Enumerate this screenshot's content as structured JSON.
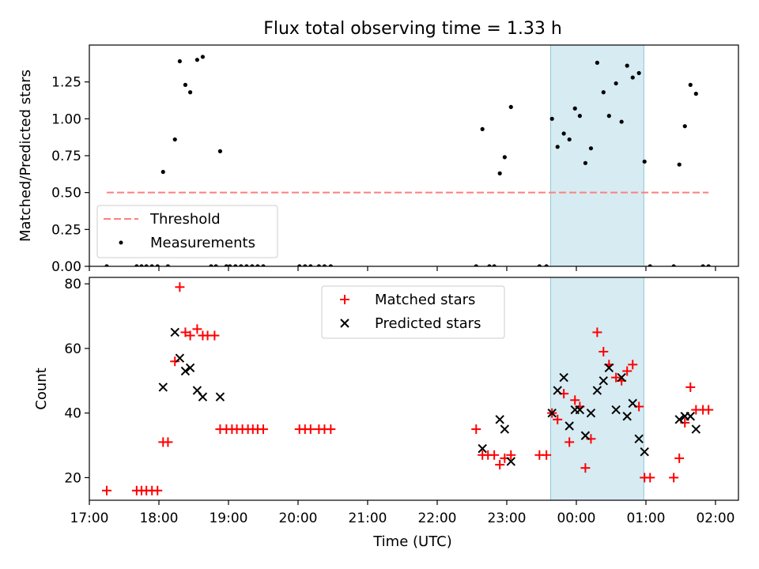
{
  "chart_data": [
    {
      "type": "scatter",
      "title": "Flux total observing time = 1.33 h",
      "xlabel": "",
      "ylabel": "Matched/Predicted stars",
      "xlim": [
        17.0,
        26.33
      ],
      "ylim": [
        0,
        1.5
      ],
      "yticks": [
        0,
        0.25,
        0.5,
        0.75,
        1.0,
        1.25
      ],
      "ytick_labels": [
        "0.00",
        "0.25",
        "0.50",
        "0.75",
        "1.00",
        "1.25"
      ],
      "highlight_span": [
        23.63,
        24.97
      ],
      "threshold": {
        "value": 0.5,
        "x_range": [
          17.25,
          25.9
        ],
        "color": "#ff7f7f",
        "label": "Threshold"
      },
      "legend": {
        "location": "lower-left",
        "entries": [
          "Threshold",
          "Measurements"
        ]
      },
      "series": [
        {
          "name": "Measurements",
          "color": "#000000",
          "x": [
            17.25,
            17.68,
            17.75,
            17.82,
            17.9,
            17.98,
            18.06,
            18.13,
            18.23,
            18.3,
            18.38,
            18.45,
            18.55,
            18.63,
            18.75,
            18.82,
            18.88,
            18.97,
            19.02,
            19.1,
            19.18,
            19.26,
            19.34,
            19.42,
            19.5,
            20.02,
            20.1,
            20.18,
            20.3,
            20.38,
            20.47,
            22.56,
            22.65,
            22.75,
            22.82,
            22.9,
            22.97,
            23.06,
            23.47,
            23.57,
            23.65,
            23.73,
            23.82,
            23.9,
            23.98,
            24.05,
            24.13,
            24.21,
            24.3,
            24.39,
            24.47,
            24.57,
            24.65,
            24.73,
            24.81,
            24.9,
            24.98,
            25.06,
            25.4,
            25.48,
            25.56,
            25.64,
            25.72,
            25.82,
            25.9
          ],
          "y": [
            0,
            0,
            0,
            0,
            0,
            0,
            0.64,
            0,
            0.86,
            1.39,
            1.23,
            1.18,
            1.4,
            1.42,
            0,
            0,
            0.78,
            0,
            0,
            0,
            0,
            0,
            0,
            0,
            0,
            0,
            0,
            0,
            0,
            0,
            0,
            0,
            0.93,
            0,
            0,
            0.63,
            0.74,
            1.08,
            0,
            0,
            1.0,
            0.81,
            0.9,
            0.86,
            1.07,
            1.02,
            0.7,
            0.8,
            1.38,
            1.18,
            1.02,
            1.24,
            0.98,
            1.36,
            1.28,
            1.31,
            0.71,
            0,
            0,
            0.69,
            0.95,
            1.23,
            1.17,
            0,
            0
          ]
        }
      ]
    },
    {
      "type": "scatter",
      "title": "",
      "xlabel": "Time (UTC)",
      "ylabel": "Count",
      "xlim": [
        17.0,
        26.33
      ],
      "ylim": [
        13,
        82
      ],
      "yticks": [
        20,
        40,
        60,
        80
      ],
      "ytick_labels": [
        "20",
        "40",
        "60",
        "80"
      ],
      "xticks": [
        17,
        18,
        19,
        20,
        21,
        22,
        23,
        24,
        25,
        26
      ],
      "xtick_labels": [
        "17:00",
        "18:00",
        "19:00",
        "20:00",
        "21:00",
        "22:00",
        "23:00",
        "00:00",
        "01:00",
        "02:00"
      ],
      "highlight_span": [
        23.63,
        24.97
      ],
      "legend": {
        "location": "upper-center",
        "entries": [
          "Matched stars",
          "Predicted stars"
        ]
      },
      "series": [
        {
          "name": "Matched stars",
          "marker": "+",
          "color": "#ff0000",
          "x": [
            17.25,
            17.68,
            17.75,
            17.82,
            17.9,
            17.98,
            18.06,
            18.13,
            18.23,
            18.3,
            18.38,
            18.45,
            18.55,
            18.63,
            18.7,
            18.8,
            18.88,
            18.97,
            19.05,
            19.12,
            19.2,
            19.28,
            19.35,
            19.42,
            19.5,
            20.02,
            20.1,
            20.18,
            20.3,
            20.38,
            20.47,
            22.56,
            22.65,
            22.73,
            22.82,
            22.9,
            22.97,
            23.06,
            23.47,
            23.57,
            23.65,
            23.73,
            23.82,
            23.9,
            23.98,
            24.05,
            24.13,
            24.21,
            24.3,
            24.39,
            24.47,
            24.57,
            24.65,
            24.73,
            24.81,
            24.9,
            24.98,
            25.06,
            25.4,
            25.48,
            25.56,
            25.64,
            25.72,
            25.82,
            25.9
          ],
          "y": [
            16,
            16,
            16,
            16,
            16,
            16,
            31,
            31,
            56,
            79,
            65,
            64,
            66,
            64,
            64,
            64,
            35,
            35,
            35,
            35,
            35,
            35,
            35,
            35,
            35,
            35,
            35,
            35,
            35,
            35,
            35,
            35,
            27,
            27,
            27,
            24,
            26,
            27,
            27,
            27,
            40,
            38,
            46,
            31,
            44,
            42,
            23,
            32,
            65,
            59,
            55,
            51,
            50,
            53,
            55,
            42,
            20,
            20,
            20,
            26,
            37,
            48,
            41,
            41,
            41
          ]
        },
        {
          "name": "Predicted stars",
          "marker": "x",
          "color": "#000000",
          "x": [
            18.06,
            18.23,
            18.3,
            18.38,
            18.45,
            18.55,
            18.63,
            18.88,
            22.65,
            22.9,
            22.97,
            23.06,
            23.65,
            23.73,
            23.82,
            23.9,
            23.98,
            24.05,
            24.13,
            24.21,
            24.3,
            24.39,
            24.47,
            24.57,
            24.65,
            24.73,
            24.81,
            24.9,
            24.98,
            25.48,
            25.56,
            25.64,
            25.72
          ],
          "y": [
            48,
            65,
            57,
            53,
            54,
            47,
            45,
            45,
            29,
            38,
            35,
            25,
            40,
            47,
            51,
            36,
            41,
            41,
            33,
            40,
            47,
            50,
            54,
            41,
            51,
            39,
            43,
            32,
            28,
            38,
            39,
            39,
            35
          ]
        }
      ]
    }
  ]
}
